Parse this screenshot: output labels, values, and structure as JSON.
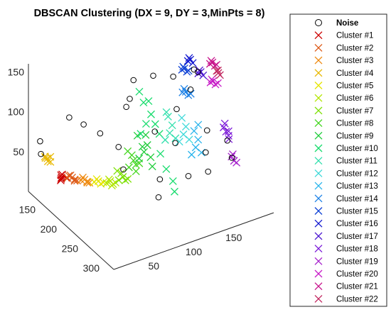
{
  "chart_data": {
    "type": "scatter",
    "projection": "3d-oblique",
    "title": "DBSCAN Clustering (DX = 9, DY = 3,MinPts = 8)",
    "xlabel": "",
    "ylabel": "",
    "zlabel": "",
    "xlim": [
      0,
      200
    ],
    "ylim": [
      120,
      320
    ],
    "zlim": [
      0,
      160
    ],
    "x_ticks": [
      "50",
      "100",
      "150"
    ],
    "y_ticks": [
      "150",
      "200",
      "250",
      "300"
    ],
    "z_ticks": [
      "50",
      "100",
      "150"
    ],
    "grid": false,
    "legend_position": "right-outside",
    "noise": {
      "name": "Noise",
      "marker": "circle",
      "color": "#000000",
      "points": [
        [
          5,
          138,
          70
        ],
        [
          5,
          140,
          55
        ],
        [
          35,
          150,
          95
        ],
        [
          45,
          165,
          90
        ],
        [
          55,
          185,
          85
        ],
        [
          70,
          200,
          70
        ],
        [
          85,
          190,
          110
        ],
        [
          100,
          170,
          105
        ],
        [
          110,
          210,
          80
        ],
        [
          125,
          230,
          70
        ],
        [
          140,
          205,
          95
        ],
        [
          155,
          245,
          55
        ],
        [
          170,
          220,
          65
        ],
        [
          160,
          200,
          110
        ],
        [
          175,
          180,
          120
        ],
        [
          150,
          260,
          40
        ],
        [
          120,
          270,
          50
        ],
        [
          95,
          250,
          45
        ],
        [
          80,
          275,
          40
        ],
        [
          140,
          150,
          110
        ],
        [
          165,
          150,
          100
        ],
        [
          180,
          180,
          115
        ],
        [
          190,
          230,
          50
        ],
        [
          185,
          250,
          40
        ],
        [
          110,
          160,
          120
        ],
        [
          60,
          230,
          60
        ]
      ]
    },
    "series": [
      {
        "name": "Cluster #1",
        "marker": "x",
        "color": "#cc0000",
        "points": [
          [
            20,
            160,
            30
          ],
          [
            22,
            158,
            32
          ],
          [
            18,
            162,
            28
          ],
          [
            24,
            164,
            30
          ],
          [
            21,
            157,
            31
          ],
          [
            19,
            161,
            29
          ]
        ]
      },
      {
        "name": "Cluster #2",
        "marker": "x",
        "color": "#dd5a18",
        "points": [
          [
            25,
            165,
            30
          ],
          [
            28,
            170,
            32
          ],
          [
            30,
            172,
            28
          ],
          [
            27,
            168,
            34
          ],
          [
            29,
            174,
            31
          ],
          [
            26,
            166,
            33
          ],
          [
            31,
            176,
            30
          ]
        ]
      },
      {
        "name": "Cluster #3",
        "marker": "x",
        "color": "#ee8a10",
        "points": [
          [
            35,
            178,
            30
          ],
          [
            37,
            182,
            32
          ],
          [
            39,
            185,
            29
          ],
          [
            36,
            180,
            34
          ],
          [
            38,
            186,
            31
          ],
          [
            40,
            188,
            30
          ]
        ]
      },
      {
        "name": "Cluster #4",
        "marker": "x",
        "color": "#e8b800",
        "points": [
          [
            10,
            140,
            50
          ],
          [
            12,
            142,
            48
          ],
          [
            11,
            145,
            46
          ],
          [
            13,
            147,
            52
          ],
          [
            9,
            143,
            50
          ],
          [
            12,
            149,
            47
          ]
        ]
      },
      {
        "name": "Cluster #5",
        "marker": "x",
        "color": "#e5e500",
        "points": [
          [
            45,
            190,
            30
          ],
          [
            48,
            194,
            32
          ],
          [
            50,
            196,
            29
          ],
          [
            47,
            192,
            34
          ],
          [
            52,
            198,
            31
          ]
        ]
      },
      {
        "name": "Cluster #6",
        "marker": "x",
        "color": "#b2e600",
        "points": [
          [
            55,
            200,
            30
          ],
          [
            58,
            203,
            33
          ],
          [
            60,
            206,
            30
          ],
          [
            57,
            202,
            35
          ],
          [
            62,
            208,
            32
          ],
          [
            59,
            205,
            28
          ]
        ]
      },
      {
        "name": "Cluster #7",
        "marker": "x",
        "color": "#7ce000",
        "points": [
          [
            65,
            210,
            35
          ],
          [
            68,
            214,
            40
          ],
          [
            70,
            216,
            36
          ],
          [
            67,
            212,
            44
          ],
          [
            72,
            218,
            38
          ],
          [
            64,
            208,
            46
          ]
        ]
      },
      {
        "name": "Cluster #8",
        "marker": "x",
        "color": "#44d620",
        "points": [
          [
            75,
            215,
            50
          ],
          [
            78,
            220,
            60
          ],
          [
            80,
            222,
            55
          ],
          [
            77,
            218,
            66
          ],
          [
            82,
            226,
            58
          ],
          [
            74,
            214,
            70
          ],
          [
            79,
            224,
            48
          ]
        ]
      },
      {
        "name": "Cluster #9",
        "marker": "x",
        "color": "#1fcc3a",
        "points": [
          [
            85,
            220,
            60
          ],
          [
            88,
            226,
            70
          ],
          [
            90,
            230,
            80
          ],
          [
            87,
            224,
            76
          ],
          [
            92,
            234,
            66
          ],
          [
            84,
            218,
            88
          ],
          [
            89,
            228,
            92
          ],
          [
            93,
            236,
            55
          ]
        ]
      },
      {
        "name": "Cluster #10",
        "marker": "x",
        "color": "#1adc6e",
        "points": [
          [
            95,
            205,
            80
          ],
          [
            98,
            212,
            95
          ],
          [
            100,
            220,
            110
          ],
          [
            97,
            208,
            120
          ],
          [
            102,
            226,
            100
          ],
          [
            96,
            200,
            130
          ],
          [
            104,
            232,
            90
          ],
          [
            99,
            216,
            125
          ],
          [
            101,
            240,
            70
          ],
          [
            103,
            250,
            55
          ],
          [
            105,
            262,
            45
          ],
          [
            100,
            275,
            40
          ]
        ]
      },
      {
        "name": "Cluster #11",
        "marker": "x",
        "color": "#33e0ad",
        "points": [
          [
            115,
            225,
            75
          ],
          [
            118,
            230,
            85
          ],
          [
            120,
            232,
            95
          ],
          [
            117,
            228,
            105
          ],
          [
            122,
            236,
            80
          ],
          [
            116,
            226,
            110
          ]
        ]
      },
      {
        "name": "Cluster #12",
        "marker": "x",
        "color": "#3fd9d9",
        "points": [
          [
            130,
            230,
            70
          ],
          [
            133,
            234,
            80
          ],
          [
            135,
            236,
            90
          ],
          [
            132,
            232,
            100
          ],
          [
            137,
            240,
            75
          ]
        ]
      },
      {
        "name": "Cluster #13",
        "marker": "x",
        "color": "#2ab4ec",
        "points": [
          [
            140,
            240,
            55
          ],
          [
            143,
            244,
            65
          ],
          [
            145,
            246,
            75
          ],
          [
            142,
            242,
            85
          ],
          [
            147,
            250,
            60
          ],
          [
            144,
            248,
            95
          ]
        ]
      },
      {
        "name": "Cluster #14",
        "marker": "x",
        "color": "#1e82e6",
        "points": [
          [
            150,
            200,
            110
          ],
          [
            152,
            204,
            112
          ],
          [
            154,
            206,
            108
          ],
          [
            151,
            202,
            115
          ],
          [
            156,
            208,
            110
          ]
        ]
      },
      {
        "name": "Cluster #15",
        "marker": "x",
        "color": "#1446d6",
        "points": [
          [
            160,
            180,
            125
          ],
          [
            162,
            182,
            127
          ],
          [
            164,
            184,
            123
          ],
          [
            161,
            181,
            129
          ],
          [
            165,
            186,
            125
          ]
        ]
      },
      {
        "name": "Cluster #16",
        "marker": "x",
        "color": "#141ad0",
        "points": [
          [
            170,
            175,
            130
          ],
          [
            172,
            177,
            132
          ],
          [
            174,
            179,
            128
          ],
          [
            171,
            176,
            134
          ]
        ]
      },
      {
        "name": "Cluster #17",
        "marker": "x",
        "color": "#4a14d0",
        "points": [
          [
            175,
            190,
            120
          ],
          [
            177,
            192,
            122
          ],
          [
            179,
            194,
            118
          ],
          [
            176,
            191,
            124
          ]
        ]
      },
      {
        "name": "Cluster #18",
        "marker": "x",
        "color": "#7c1ad8",
        "points": [
          [
            180,
            240,
            75
          ],
          [
            182,
            242,
            70
          ],
          [
            184,
            244,
            65
          ],
          [
            181,
            241,
            80
          ],
          [
            183,
            246,
            72
          ],
          [
            185,
            243,
            60
          ]
        ]
      },
      {
        "name": "Cluster #19",
        "marker": "x",
        "color": "#a622cc",
        "points": [
          [
            182,
            255,
            45
          ],
          [
            184,
            257,
            40
          ],
          [
            186,
            259,
            38
          ],
          [
            183,
            256,
            48
          ]
        ]
      },
      {
        "name": "Cluster #20",
        "marker": "x",
        "color": "#c81ec8",
        "points": [
          [
            185,
            200,
            110
          ],
          [
            187,
            202,
            112
          ],
          [
            189,
            204,
            108
          ],
          [
            186,
            201,
            114
          ],
          [
            191,
            206,
            110
          ]
        ]
      },
      {
        "name": "Cluster #21",
        "marker": "x",
        "color": "#c8148c",
        "points": [
          [
            195,
            180,
            120
          ],
          [
            197,
            182,
            122
          ],
          [
            199,
            184,
            118
          ],
          [
            196,
            181,
            124
          ],
          [
            200,
            186,
            120
          ]
        ]
      },
      {
        "name": "Cluster #22",
        "marker": "x",
        "color": "#c22860",
        "points": [
          [
            198,
            190,
            115
          ],
          [
            199,
            192,
            113
          ],
          [
            200,
            194,
            111
          ],
          [
            198,
            193,
            117
          ]
        ]
      }
    ]
  }
}
